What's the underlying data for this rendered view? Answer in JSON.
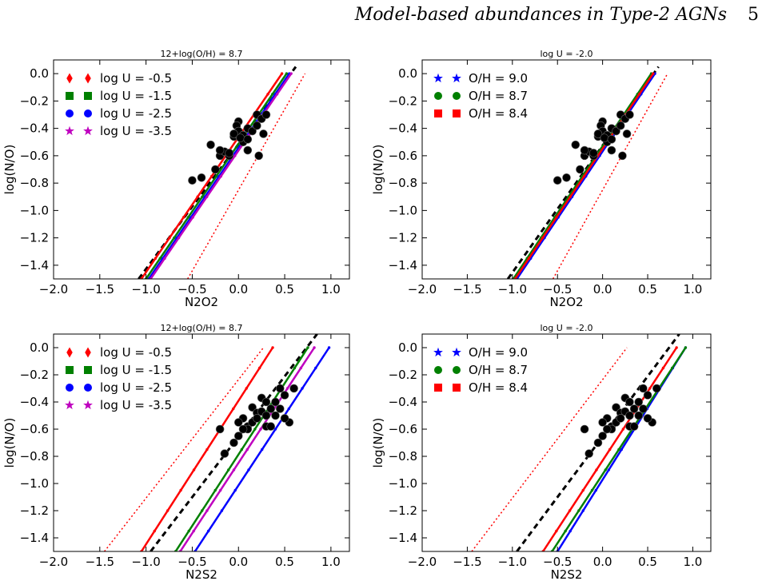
{
  "header": {
    "running_title": "Model-based abundances in Type-2 AGNs",
    "page_number": "5"
  },
  "chart_data": [
    {
      "type": "line",
      "title": "12+log(O/H) = 8.7",
      "xlabel": "N2O2",
      "ylabel": "log(N/O)",
      "xlim": [
        -2.0,
        1.2
      ],
      "ylim": [
        -1.5,
        0.1
      ],
      "xticks": [
        "−2.0",
        "−1.5",
        "−1.0",
        "−0.5",
        "0.0",
        "0.5",
        "1.0"
      ],
      "yticks": [
        "0.0",
        "−0.2",
        "−0.4",
        "−0.6",
        "−0.8",
        "−1.0",
        "−1.2",
        "−1.4"
      ],
      "legend_position": "top-left",
      "series": [
        {
          "name": "log U = -0.5",
          "color": "#ff0000",
          "marker": "diamond",
          "x": [
            -1.05,
            0.47
          ],
          "y": [
            -1.5,
            0.0
          ]
        },
        {
          "name": "log U = -1.5",
          "color": "#008000",
          "marker": "square",
          "x": [
            -1.0,
            0.52
          ],
          "y": [
            -1.5,
            0.0
          ]
        },
        {
          "name": "log U = -2.5",
          "color": "#0000ff",
          "marker": "circle",
          "x": [
            -0.97,
            0.55
          ],
          "y": [
            -1.5,
            0.0
          ]
        },
        {
          "name": "log U = -3.5",
          "color": "#bf00bf",
          "marker": "star",
          "x": [
            -0.95,
            0.57
          ],
          "y": [
            -1.5,
            0.0
          ]
        }
      ],
      "reference_lines": [
        {
          "style": "dashed",
          "color": "#000000",
          "x": [
            -1.08,
            0.62
          ],
          "y": [
            -1.5,
            0.05
          ]
        },
        {
          "style": "dotted",
          "color": "#ff0000",
          "x": [
            -0.55,
            0.72
          ],
          "y": [
            -1.5,
            0.0
          ]
        }
      ],
      "points": {
        "x": [
          -0.5,
          -0.4,
          -0.25,
          -0.2,
          -0.15,
          -0.1,
          -0.05,
          0.0,
          0.0,
          -0.02,
          0.05,
          0.1,
          0.1,
          0.15,
          0.2,
          0.22,
          0.25,
          0.27,
          0.3,
          0.2,
          -0.3,
          -0.2,
          -0.1,
          0.0,
          0.05,
          -0.05,
          0.02,
          0.1
        ],
        "y": [
          -0.78,
          -0.76,
          -0.7,
          -0.6,
          -0.57,
          -0.6,
          -0.46,
          -0.35,
          -0.45,
          -0.38,
          -0.5,
          -0.56,
          -0.4,
          -0.42,
          -0.3,
          -0.6,
          -0.33,
          -0.44,
          -0.3,
          -0.38,
          -0.52,
          -0.56,
          -0.58,
          -0.42,
          -0.45,
          -0.44,
          -0.47,
          -0.48
        ]
      }
    },
    {
      "type": "line",
      "title": "log U = -2.0",
      "xlabel": "N2O2",
      "ylabel": "log(N/O)",
      "xlim": [
        -2.0,
        1.2
      ],
      "ylim": [
        -1.5,
        0.1
      ],
      "xticks": [
        "−2.0",
        "−1.5",
        "−1.0",
        "−0.5",
        "0.0",
        "0.5",
        "1.0"
      ],
      "yticks": [
        "0.0",
        "−0.2",
        "−0.4",
        "−0.6",
        "−0.8",
        "−1.0",
        "−1.2",
        "−1.4"
      ],
      "legend_position": "top-left",
      "series": [
        {
          "name": "O/H = 9.0",
          "color": "#0000ff",
          "marker": "star",
          "x": [
            -0.95,
            0.58
          ],
          "y": [
            -1.5,
            0.0
          ]
        },
        {
          "name": "O/H = 8.7",
          "color": "#008000",
          "marker": "circle",
          "x": [
            -0.99,
            0.54
          ],
          "y": [
            -1.5,
            0.0
          ]
        },
        {
          "name": "O/H = 8.4",
          "color": "#ff0000",
          "marker": "square",
          "x": [
            -0.97,
            0.56
          ],
          "y": [
            -1.5,
            0.0
          ]
        }
      ],
      "reference_lines": [
        {
          "style": "dashed",
          "color": "#000000",
          "x": [
            -1.05,
            0.62
          ],
          "y": [
            -1.5,
            0.05
          ]
        },
        {
          "style": "dotted",
          "color": "#ff0000",
          "x": [
            -0.55,
            0.72
          ],
          "y": [
            -1.5,
            0.0
          ]
        }
      ],
      "points": {
        "x": [
          -0.5,
          -0.4,
          -0.25,
          -0.2,
          -0.15,
          -0.1,
          -0.05,
          0.0,
          0.0,
          -0.02,
          0.05,
          0.1,
          0.1,
          0.15,
          0.2,
          0.22,
          0.25,
          0.27,
          0.3,
          0.2,
          -0.3,
          -0.2,
          -0.1,
          0.0,
          0.05,
          -0.05,
          0.02,
          0.1
        ],
        "y": [
          -0.78,
          -0.76,
          -0.7,
          -0.6,
          -0.57,
          -0.6,
          -0.46,
          -0.35,
          -0.45,
          -0.38,
          -0.5,
          -0.56,
          -0.4,
          -0.42,
          -0.3,
          -0.6,
          -0.33,
          -0.44,
          -0.3,
          -0.38,
          -0.52,
          -0.56,
          -0.58,
          -0.42,
          -0.45,
          -0.44,
          -0.47,
          -0.48
        ]
      }
    },
    {
      "type": "line",
      "title": "12+log(O/H) = 8.7",
      "xlabel": "N2S2",
      "ylabel": "log(N/O)",
      "xlim": [
        -2.0,
        1.2
      ],
      "ylim": [
        -1.5,
        0.1
      ],
      "xticks": [
        "−2.0",
        "−1.5",
        "−1.0",
        "−0.5",
        "0.0",
        "0.5",
        "1.0"
      ],
      "yticks": [
        "0.0",
        "−0.2",
        "−0.4",
        "−0.6",
        "−0.8",
        "−1.0",
        "−1.2",
        "−1.4"
      ],
      "legend_position": "top-left",
      "series": [
        {
          "name": "log U = -0.5",
          "color": "#ff0000",
          "marker": "diamond",
          "x": [
            -1.05,
            0.37
          ],
          "y": [
            -1.5,
            0.0
          ]
        },
        {
          "name": "log U = -1.5",
          "color": "#008000",
          "marker": "square",
          "x": [
            -0.68,
            0.75
          ],
          "y": [
            -1.5,
            0.0
          ]
        },
        {
          "name": "log U = -2.5",
          "color": "#0000ff",
          "marker": "circle",
          "x": [
            -0.47,
            0.98
          ],
          "y": [
            -1.5,
            0.0
          ]
        },
        {
          "name": "log U = -3.5",
          "color": "#bf00bf",
          "marker": "star",
          "x": [
            -0.63,
            0.82
          ],
          "y": [
            -1.5,
            0.0
          ]
        }
      ],
      "reference_lines": [
        {
          "style": "dashed",
          "color": "#000000",
          "x": [
            -0.95,
            0.85
          ],
          "y": [
            -1.5,
            0.1
          ]
        },
        {
          "style": "dotted",
          "color": "#ff0000",
          "x": [
            -1.45,
            0.27
          ],
          "y": [
            -1.5,
            0.0
          ]
        }
      ],
      "points": {
        "x": [
          -0.2,
          -0.15,
          -0.05,
          0.0,
          0.05,
          0.1,
          0.15,
          0.15,
          0.2,
          0.25,
          0.3,
          0.35,
          0.4,
          0.45,
          0.5,
          0.55,
          0.6,
          0.3,
          0.25,
          0.2,
          0.1,
          0.0,
          0.05,
          0.35,
          0.3,
          0.4,
          0.45,
          0.5
        ],
        "y": [
          -0.6,
          -0.78,
          -0.7,
          -0.65,
          -0.52,
          -0.58,
          -0.55,
          -0.44,
          -0.48,
          -0.37,
          -0.4,
          -0.45,
          -0.5,
          -0.3,
          -0.35,
          -0.55,
          -0.3,
          -0.58,
          -0.47,
          -0.52,
          -0.6,
          -0.55,
          -0.6,
          -0.58,
          -0.5,
          -0.4,
          -0.45,
          -0.52
        ]
      }
    },
    {
      "type": "line",
      "title": "log U = -2.0",
      "xlabel": "N2S2",
      "ylabel": "log(N/O)",
      "xlim": [
        -2.0,
        1.2
      ],
      "ylim": [
        -1.5,
        0.1
      ],
      "xticks": [
        "−2.0",
        "−1.5",
        "−1.0",
        "−0.5",
        "0.0",
        "0.5",
        "1.0"
      ],
      "yticks": [
        "0.0",
        "−0.2",
        "−0.4",
        "−0.6",
        "−0.8",
        "−1.0",
        "−1.2",
        "−1.4"
      ],
      "legend_position": "top-left",
      "series": [
        {
          "name": "O/H = 9.0",
          "color": "#0000ff",
          "marker": "star",
          "x": [
            -0.5,
            0.92
          ],
          "y": [
            -1.5,
            0.0
          ]
        },
        {
          "name": "O/H = 8.7",
          "color": "#008000",
          "marker": "circle",
          "x": [
            -0.56,
            0.92
          ],
          "y": [
            -1.5,
            0.0
          ]
        },
        {
          "name": "O/H = 8.4",
          "color": "#ff0000",
          "marker": "square",
          "x": [
            -0.66,
            0.82
          ],
          "y": [
            -1.5,
            0.0
          ]
        }
      ],
      "reference_lines": [
        {
          "style": "dashed",
          "color": "#000000",
          "x": [
            -0.95,
            0.85
          ],
          "y": [
            -1.5,
            0.1
          ]
        },
        {
          "style": "dotted",
          "color": "#ff0000",
          "x": [
            -1.45,
            0.27
          ],
          "y": [
            -1.5,
            0.0
          ]
        }
      ],
      "points": {
        "x": [
          -0.2,
          -0.15,
          -0.05,
          0.0,
          0.05,
          0.1,
          0.15,
          0.15,
          0.2,
          0.25,
          0.3,
          0.35,
          0.4,
          0.45,
          0.5,
          0.55,
          0.6,
          0.3,
          0.25,
          0.2,
          0.1,
          0.0,
          0.05,
          0.35,
          0.3,
          0.4,
          0.45,
          0.5
        ],
        "y": [
          -0.6,
          -0.78,
          -0.7,
          -0.65,
          -0.52,
          -0.58,
          -0.55,
          -0.44,
          -0.48,
          -0.37,
          -0.4,
          -0.45,
          -0.5,
          -0.3,
          -0.35,
          -0.55,
          -0.3,
          -0.58,
          -0.47,
          -0.52,
          -0.6,
          -0.55,
          -0.6,
          -0.58,
          -0.5,
          -0.4,
          -0.45,
          -0.52
        ]
      }
    }
  ]
}
